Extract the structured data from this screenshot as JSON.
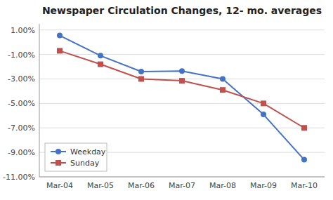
{
  "chart_data": {
    "type": "line",
    "title": "Newspaper Circulation Changes, 12- mo. averages",
    "categories": [
      "Mar-04",
      "Mar-05",
      "Mar-06",
      "Mar-07",
      "Mar-08",
      "Mar-09",
      "Mar-10"
    ],
    "series": [
      {
        "name": "Weekday",
        "color": "#4472C4",
        "marker": "circle",
        "values": [
          0.55,
          -1.1,
          -2.4,
          -2.35,
          -3.0,
          -5.9,
          -9.6
        ]
      },
      {
        "name": "Sunday",
        "color": "#C0504D",
        "marker": "square",
        "values": [
          -0.7,
          -1.8,
          -3.0,
          -3.15,
          -3.9,
          -5.0,
          -7.0
        ]
      }
    ],
    "ylim": [
      -11.0,
      1.5
    ],
    "yticks": [
      {
        "value": 1.0,
        "label": "1.00%"
      },
      {
        "value": -1.0,
        "label": "-1.00%"
      },
      {
        "value": -3.0,
        "label": "-3.00%"
      },
      {
        "value": -5.0,
        "label": "-5.00%"
      },
      {
        "value": -7.0,
        "label": "-7.00%"
      },
      {
        "value": -9.0,
        "label": "-9.00%"
      },
      {
        "value": -11.0,
        "label": "-11.00%"
      }
    ],
    "grid": true,
    "legend": "lower left"
  }
}
